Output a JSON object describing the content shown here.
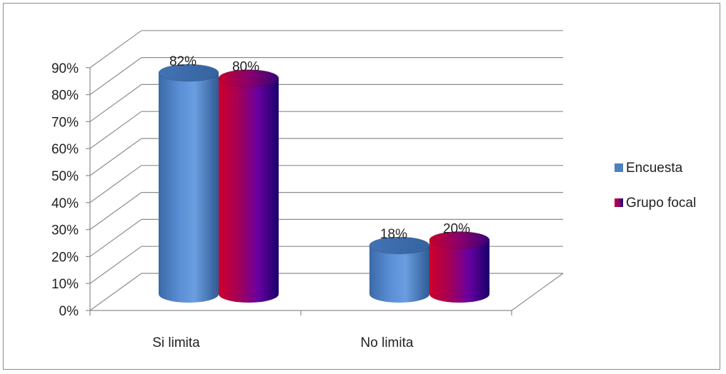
{
  "chart_data": {
    "type": "bar",
    "categories": [
      "Si limita",
      "No limita"
    ],
    "series": [
      {
        "name": "Encuesta",
        "values": [
          82,
          18
        ],
        "labels": [
          "82%",
          "18%"
        ],
        "color": "#4f81bd"
      },
      {
        "name": "Grupo focal",
        "values": [
          80,
          20
        ],
        "labels": [
          "80%",
          "20%"
        ],
        "color": "#c0003c"
      }
    ],
    "value_format": "percent",
    "ylim": [
      0,
      90
    ],
    "yticks": [
      "0%",
      "10%",
      "20%",
      "30%",
      "40%",
      "50%",
      "60%",
      "70%",
      "80%",
      "90%"
    ],
    "title": "",
    "xlabel": "",
    "ylabel": "",
    "grid": true,
    "legend_position": "right",
    "style": "3d-cylinder"
  }
}
